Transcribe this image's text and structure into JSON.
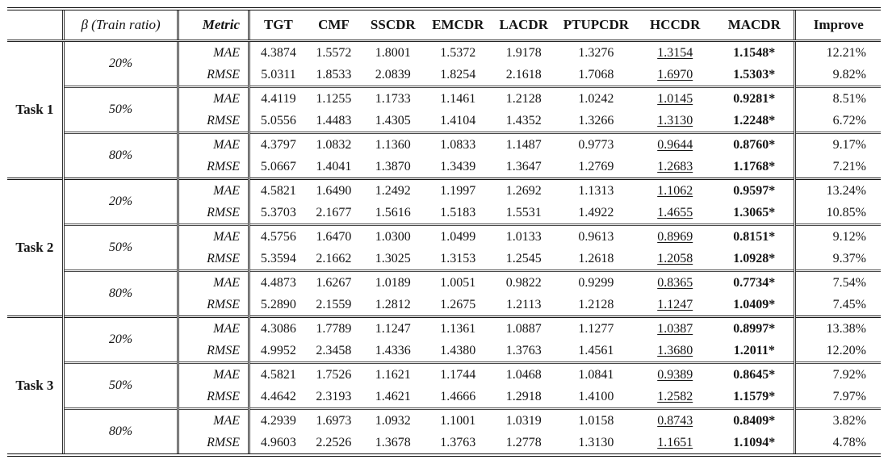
{
  "table": {
    "header": {
      "task": "",
      "beta": "β (Train ratio)",
      "metric": "Metric",
      "methods": [
        "TGT",
        "CMF",
        "SSCDR",
        "EMCDR",
        "LACDR",
        "PTUPCDR",
        "HCCDR",
        "MACDR"
      ],
      "improve": "Improve"
    },
    "formatting_notes": {
      "underlined_column": "HCCDR",
      "bold_starred_column": "MACDR"
    },
    "tasks": [
      {
        "label": "Task 1",
        "groups": [
          {
            "ratio": "20%",
            "rows": [
              {
                "metric": "MAE",
                "values": [
                  "4.3874",
                  "1.5572",
                  "1.8001",
                  "1.5372",
                  "1.9178",
                  "1.3276",
                  "1.3154",
                  "1.1548*"
                ],
                "improve": "12.21%"
              },
              {
                "metric": "RMSE",
                "values": [
                  "5.0311",
                  "1.8533",
                  "2.0839",
                  "1.8254",
                  "2.1618",
                  "1.7068",
                  "1.6970",
                  "1.5303*"
                ],
                "improve": "9.82%"
              }
            ]
          },
          {
            "ratio": "50%",
            "rows": [
              {
                "metric": "MAE",
                "values": [
                  "4.4119",
                  "1.1255",
                  "1.1733",
                  "1.1461",
                  "1.2128",
                  "1.0242",
                  "1.0145",
                  "0.9281*"
                ],
                "improve": "8.51%"
              },
              {
                "metric": "RMSE",
                "values": [
                  "5.0556",
                  "1.4483",
                  "1.4305",
                  "1.4104",
                  "1.4352",
                  "1.3266",
                  "1.3130",
                  "1.2248*"
                ],
                "improve": "6.72%"
              }
            ]
          },
          {
            "ratio": "80%",
            "rows": [
              {
                "metric": "MAE",
                "values": [
                  "4.3797",
                  "1.0832",
                  "1.1360",
                  "1.0833",
                  "1.1487",
                  "0.9773",
                  "0.9644",
                  "0.8760*"
                ],
                "improve": "9.17%"
              },
              {
                "metric": "RMSE",
                "values": [
                  "5.0667",
                  "1.4041",
                  "1.3870",
                  "1.3439",
                  "1.3647",
                  "1.2769",
                  "1.2683",
                  "1.1768*"
                ],
                "improve": "7.21%"
              }
            ]
          }
        ]
      },
      {
        "label": "Task 2",
        "groups": [
          {
            "ratio": "20%",
            "rows": [
              {
                "metric": "MAE",
                "values": [
                  "4.5821",
                  "1.6490",
                  "1.2492",
                  "1.1997",
                  "1.2692",
                  "1.1313",
                  "1.1062",
                  "0.9597*"
                ],
                "improve": "13.24%"
              },
              {
                "metric": "RMSE",
                "values": [
                  "5.3703",
                  "2.1677",
                  "1.5616",
                  "1.5183",
                  "1.5531",
                  "1.4922",
                  "1.4655",
                  "1.3065*"
                ],
                "improve": "10.85%"
              }
            ]
          },
          {
            "ratio": "50%",
            "rows": [
              {
                "metric": "MAE",
                "values": [
                  "4.5756",
                  "1.6470",
                  "1.0300",
                  "1.0499",
                  "1.0133",
                  "0.9613",
                  "0.8969",
                  "0.8151*"
                ],
                "improve": "9.12%"
              },
              {
                "metric": "RMSE",
                "values": [
                  "5.3594",
                  "2.1662",
                  "1.3025",
                  "1.3153",
                  "1.2545",
                  "1.2618",
                  "1.2058",
                  "1.0928*"
                ],
                "improve": "9.37%"
              }
            ]
          },
          {
            "ratio": "80%",
            "rows": [
              {
                "metric": "MAE",
                "values": [
                  "4.4873",
                  "1.6267",
                  "1.0189",
                  "1.0051",
                  "0.9822",
                  "0.9299",
                  "0.8365",
                  "0.7734*"
                ],
                "improve": "7.54%"
              },
              {
                "metric": "RMSE",
                "values": [
                  "5.2890",
                  "2.1559",
                  "1.2812",
                  "1.2675",
                  "1.2113",
                  "1.2128",
                  "1.1247",
                  "1.0409*"
                ],
                "improve": "7.45%"
              }
            ]
          }
        ]
      },
      {
        "label": "Task 3",
        "groups": [
          {
            "ratio": "20%",
            "rows": [
              {
                "metric": "MAE",
                "values": [
                  "4.3086",
                  "1.7789",
                  "1.1247",
                  "1.1361",
                  "1.0887",
                  "1.1277",
                  "1.0387",
                  "0.8997*"
                ],
                "improve": "13.38%"
              },
              {
                "metric": "RMSE",
                "values": [
                  "4.9952",
                  "2.3458",
                  "1.4336",
                  "1.4380",
                  "1.3763",
                  "1.4561",
                  "1.3680",
                  "1.2011*"
                ],
                "improve": "12.20%"
              }
            ]
          },
          {
            "ratio": "50%",
            "rows": [
              {
                "metric": "MAE",
                "values": [
                  "4.5821",
                  "1.7526",
                  "1.1621",
                  "1.1744",
                  "1.0468",
                  "1.0841",
                  "0.9389",
                  "0.8645*"
                ],
                "improve": "7.92%"
              },
              {
                "metric": "RMSE",
                "values": [
                  "4.4642",
                  "2.3193",
                  "1.4621",
                  "1.4666",
                  "1.2918",
                  "1.4100",
                  "1.2582",
                  "1.1579*"
                ],
                "improve": "7.97%"
              }
            ]
          },
          {
            "ratio": "80%",
            "rows": [
              {
                "metric": "MAE",
                "values": [
                  "4.2939",
                  "1.6973",
                  "1.0932",
                  "1.1001",
                  "1.0319",
                  "1.0158",
                  "0.8743",
                  "0.8409*"
                ],
                "improve": "3.82%"
              },
              {
                "metric": "RMSE",
                "values": [
                  "4.9603",
                  "2.2526",
                  "1.3678",
                  "1.3763",
                  "1.2778",
                  "1.3130",
                  "1.1651",
                  "1.1094*"
                ],
                "improve": "4.78%"
              }
            ]
          }
        ]
      }
    ]
  },
  "colors": {
    "text": "#151515",
    "rule": "#111111",
    "background": "#ffffff"
  }
}
